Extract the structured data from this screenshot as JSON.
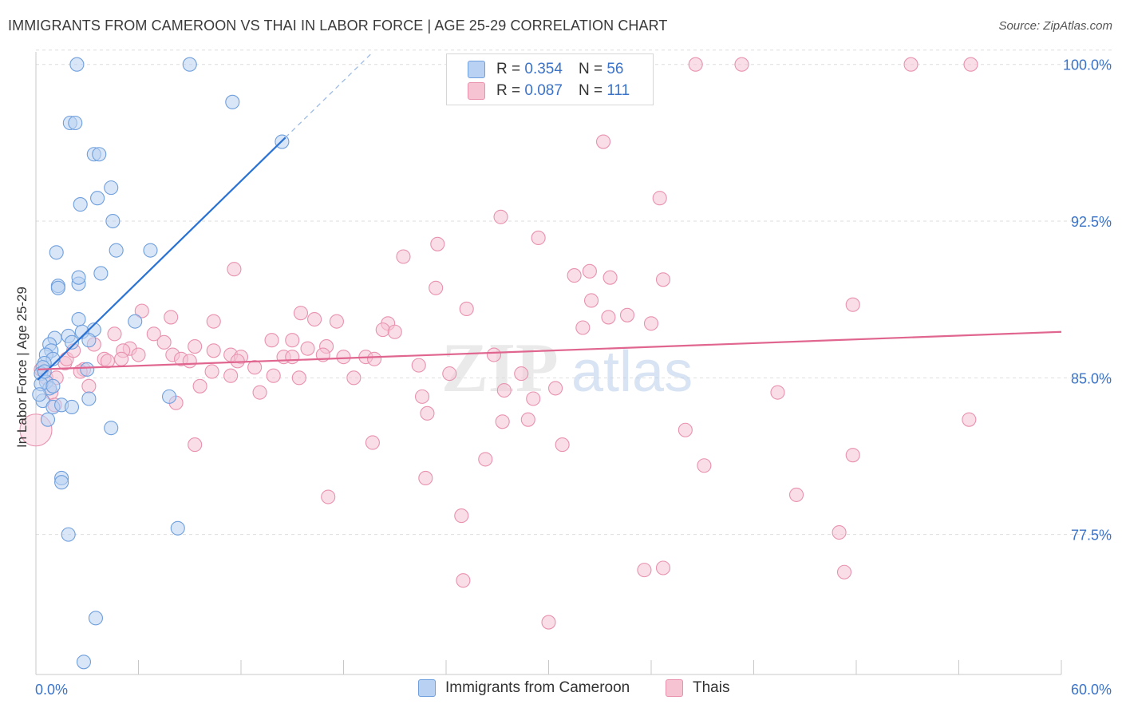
{
  "title": "IMMIGRANTS FROM CAMEROON VS THAI IN LABOR FORCE | AGE 25-29 CORRELATION CHART",
  "source": "Source: ZipAtlas.com",
  "colors": {
    "blue_fill": "#b9d1f2",
    "blue_stroke": "#6f9fdc",
    "blue_line": "#2a72d3",
    "pink_fill": "#f6c3d3",
    "pink_stroke": "#e892ae",
    "pink_line": "#e06690",
    "tick_label": "#3b73c8",
    "grid": "#dedede"
  },
  "legend": {
    "r_label": "R =",
    "n_label": "N =",
    "rows": [
      {
        "series": "blue",
        "r": "0.354",
        "n": "56"
      },
      {
        "series": "pink",
        "r": "0.087",
        "n": "111"
      }
    ]
  },
  "bottom_legend": [
    {
      "series": "blue",
      "label": "Immigrants from Cameroon"
    },
    {
      "series": "pink",
      "label": "Thais"
    }
  ],
  "watermark": {
    "zip": "ZIP",
    "atlas": "atlas"
  },
  "chart_data": {
    "type": "scatter",
    "title": "IMMIGRANTS FROM CAMEROON VS THAI IN LABOR FORCE | AGE 25-29 CORRELATION CHART",
    "xlabel": "",
    "ylabel": "In Labor Force | Age 25-29",
    "xlim": [
      0,
      60
    ],
    "ylim": [
      70.8,
      100.6
    ],
    "x_tick_labels": [
      "0.0%",
      "60.0%"
    ],
    "y_ticks": [
      100.0,
      92.5,
      85.0,
      77.5
    ],
    "y_tick_labels": [
      "100.0%",
      "92.5%",
      "85.0%",
      "77.5%"
    ],
    "grid": "horizontal dashed",
    "series": [
      {
        "name": "Immigrants from Cameroon",
        "color": "blue",
        "r": 0.354,
        "n": 56,
        "trend": {
          "x0": 0.1,
          "y0": 84.9,
          "x1": 14.6,
          "y1": 96.5,
          "dashed_to_x": 19.6
        },
        "points": [
          [
            2.4,
            100.0
          ],
          [
            9.0,
            100.0
          ],
          [
            11.5,
            98.2
          ],
          [
            2.0,
            97.2
          ],
          [
            2.3,
            97.2
          ],
          [
            3.4,
            95.7
          ],
          [
            3.7,
            95.7
          ],
          [
            14.4,
            96.3
          ],
          [
            4.4,
            94.1
          ],
          [
            3.6,
            93.6
          ],
          [
            2.6,
            93.3
          ],
          [
            4.5,
            92.5
          ],
          [
            4.7,
            91.1
          ],
          [
            6.7,
            91.1
          ],
          [
            1.2,
            91.0
          ],
          [
            3.8,
            90.0
          ],
          [
            1.3,
            89.4
          ],
          [
            2.5,
            89.5
          ],
          [
            2.5,
            89.8
          ],
          [
            1.3,
            89.3
          ],
          [
            2.5,
            87.8
          ],
          [
            5.8,
            87.7
          ],
          [
            3.4,
            87.3
          ],
          [
            1.9,
            87.0
          ],
          [
            2.7,
            87.2
          ],
          [
            1.1,
            86.9
          ],
          [
            3.1,
            86.8
          ],
          [
            2.1,
            86.7
          ],
          [
            0.8,
            86.6
          ],
          [
            0.9,
            86.3
          ],
          [
            0.6,
            86.1
          ],
          [
            1.0,
            85.9
          ],
          [
            0.5,
            85.7
          ],
          [
            0.4,
            85.5
          ],
          [
            3.0,
            85.4
          ],
          [
            0.3,
            85.2
          ],
          [
            0.6,
            84.8
          ],
          [
            0.8,
            84.5
          ],
          [
            0.3,
            84.7
          ],
          [
            7.8,
            84.1
          ],
          [
            3.1,
            84.0
          ],
          [
            0.4,
            83.9
          ],
          [
            1.0,
            83.6
          ],
          [
            1.5,
            83.7
          ],
          [
            2.1,
            83.6
          ],
          [
            0.7,
            83.0
          ],
          [
            4.4,
            82.6
          ],
          [
            1.5,
            80.2
          ],
          [
            1.5,
            80.0
          ],
          [
            8.3,
            77.8
          ],
          [
            1.9,
            77.5
          ],
          [
            3.5,
            73.5
          ],
          [
            2.8,
            71.4
          ],
          [
            0.2,
            84.2
          ],
          [
            0.5,
            85.3
          ],
          [
            1.0,
            84.6
          ]
        ]
      },
      {
        "name": "Thais",
        "color": "pink",
        "r": 0.087,
        "n": 111,
        "trend": {
          "x0": 0.1,
          "y0": 85.4,
          "x1": 60.0,
          "y1": 87.2
        },
        "points": [
          [
            38.6,
            100.0
          ],
          [
            41.3,
            100.0
          ],
          [
            51.2,
            100.0
          ],
          [
            54.7,
            100.0
          ],
          [
            33.2,
            96.3
          ],
          [
            36.5,
            93.6
          ],
          [
            27.2,
            92.7
          ],
          [
            29.4,
            91.7
          ],
          [
            23.5,
            91.4
          ],
          [
            21.5,
            90.8
          ],
          [
            11.6,
            90.2
          ],
          [
            31.5,
            89.9
          ],
          [
            32.4,
            90.1
          ],
          [
            33.6,
            89.8
          ],
          [
            36.7,
            89.7
          ],
          [
            23.4,
            89.3
          ],
          [
            32.5,
            88.7
          ],
          [
            25.2,
            88.3
          ],
          [
            47.8,
            88.5
          ],
          [
            15.5,
            88.1
          ],
          [
            6.2,
            88.2
          ],
          [
            7.9,
            87.9
          ],
          [
            10.4,
            87.7
          ],
          [
            16.3,
            87.8
          ],
          [
            17.6,
            87.7
          ],
          [
            20.6,
            87.6
          ],
          [
            33.5,
            87.9
          ],
          [
            34.6,
            88.0
          ],
          [
            36.0,
            87.6
          ],
          [
            32.0,
            87.4
          ],
          [
            20.3,
            87.3
          ],
          [
            21.0,
            87.2
          ],
          [
            6.9,
            87.1
          ],
          [
            4.6,
            87.1
          ],
          [
            5.5,
            86.4
          ],
          [
            7.5,
            86.7
          ],
          [
            13.8,
            86.8
          ],
          [
            15.0,
            86.8
          ],
          [
            17.0,
            86.5
          ],
          [
            15.9,
            86.4
          ],
          [
            10.4,
            86.3
          ],
          [
            11.4,
            86.1
          ],
          [
            5.1,
            86.3
          ],
          [
            6.0,
            86.1
          ],
          [
            3.4,
            86.6
          ],
          [
            8.0,
            86.1
          ],
          [
            12.0,
            86.0
          ],
          [
            14.5,
            86.0
          ],
          [
            15.0,
            86.0
          ],
          [
            8.5,
            85.9
          ],
          [
            9.0,
            85.8
          ],
          [
            11.8,
            85.8
          ],
          [
            16.8,
            86.1
          ],
          [
            18.0,
            86.0
          ],
          [
            19.3,
            86.0
          ],
          [
            19.8,
            85.9
          ],
          [
            22.4,
            85.6
          ],
          [
            26.8,
            86.1
          ],
          [
            4.0,
            85.9
          ],
          [
            4.2,
            85.8
          ],
          [
            2.8,
            85.4
          ],
          [
            1.7,
            85.7
          ],
          [
            0.3,
            85.4
          ],
          [
            0.6,
            85.0
          ],
          [
            1.2,
            85.0
          ],
          [
            2.6,
            85.3
          ],
          [
            10.3,
            85.3
          ],
          [
            11.4,
            85.1
          ],
          [
            13.9,
            85.1
          ],
          [
            15.4,
            85.0
          ],
          [
            18.6,
            85.0
          ],
          [
            24.2,
            85.2
          ],
          [
            28.4,
            85.2
          ],
          [
            3.1,
            84.6
          ],
          [
            9.6,
            84.6
          ],
          [
            30.4,
            84.5
          ],
          [
            0.9,
            84.3
          ],
          [
            13.1,
            84.3
          ],
          [
            27.4,
            84.4
          ],
          [
            29.1,
            84.0
          ],
          [
            22.6,
            84.1
          ],
          [
            43.4,
            84.3
          ],
          [
            8.2,
            83.8
          ],
          [
            1.1,
            83.7
          ],
          [
            22.9,
            83.3
          ],
          [
            27.3,
            82.9
          ],
          [
            28.8,
            83.0
          ],
          [
            54.6,
            83.0
          ],
          [
            38.0,
            82.5
          ],
          [
            0.0,
            82.5
          ],
          [
            9.3,
            81.8
          ],
          [
            19.7,
            81.9
          ],
          [
            30.8,
            81.8
          ],
          [
            26.3,
            81.1
          ],
          [
            39.1,
            80.8
          ],
          [
            47.8,
            81.3
          ],
          [
            22.8,
            80.2
          ],
          [
            17.1,
            79.3
          ],
          [
            44.5,
            79.4
          ],
          [
            24.9,
            78.4
          ],
          [
            47.0,
            77.6
          ],
          [
            35.6,
            75.8
          ],
          [
            36.7,
            75.9
          ],
          [
            47.3,
            75.7
          ],
          [
            25.0,
            75.3
          ],
          [
            30.0,
            73.3
          ],
          [
            1.8,
            85.9
          ],
          [
            2.2,
            86.3
          ],
          [
            5.0,
            85.9
          ],
          [
            9.3,
            86.5
          ],
          [
            12.8,
            85.5
          ]
        ]
      }
    ]
  }
}
